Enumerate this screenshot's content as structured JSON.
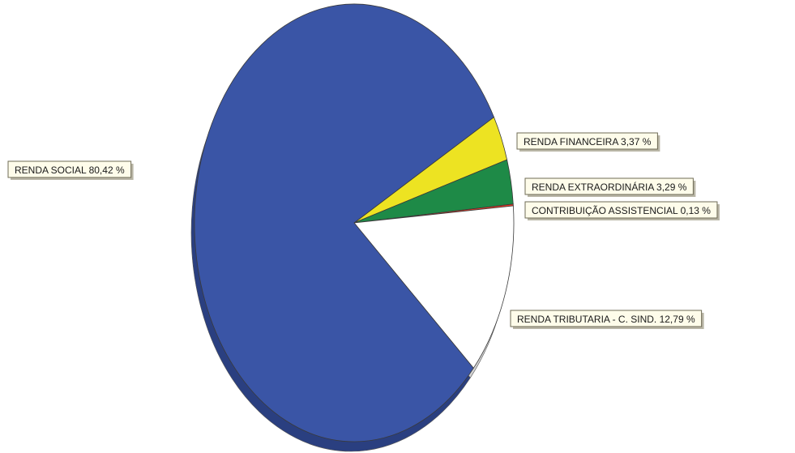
{
  "chart_data": {
    "type": "pie",
    "title": "",
    "slices": [
      {
        "label": "RENDA FINANCEIRA 3,37 %",
        "value": 3.37,
        "color": "#ede322",
        "side_color": "#b8ad10"
      },
      {
        "label": "RENDA EXTRAORDINÁRIA 3,29 %",
        "value": 3.29,
        "color": "#1e8a47",
        "side_color": "#125e30"
      },
      {
        "label": "CONTRIBUIÇÃO ASSISTENCIAL 0,13 %",
        "value": 0.13,
        "color": "#f03a26",
        "side_color": "#a82414"
      },
      {
        "label": "RENDA TRIBUTARIA - C. SIND. 12,79 %",
        "value": 12.79,
        "color": "#ffffff",
        "side_color": "#d3d3d3"
      },
      {
        "label": "RENDA SOCIAL 80,42 %",
        "value": 80.42,
        "color": "#3a55a6",
        "side_color": "#2a3f80"
      }
    ],
    "legend": "none"
  }
}
